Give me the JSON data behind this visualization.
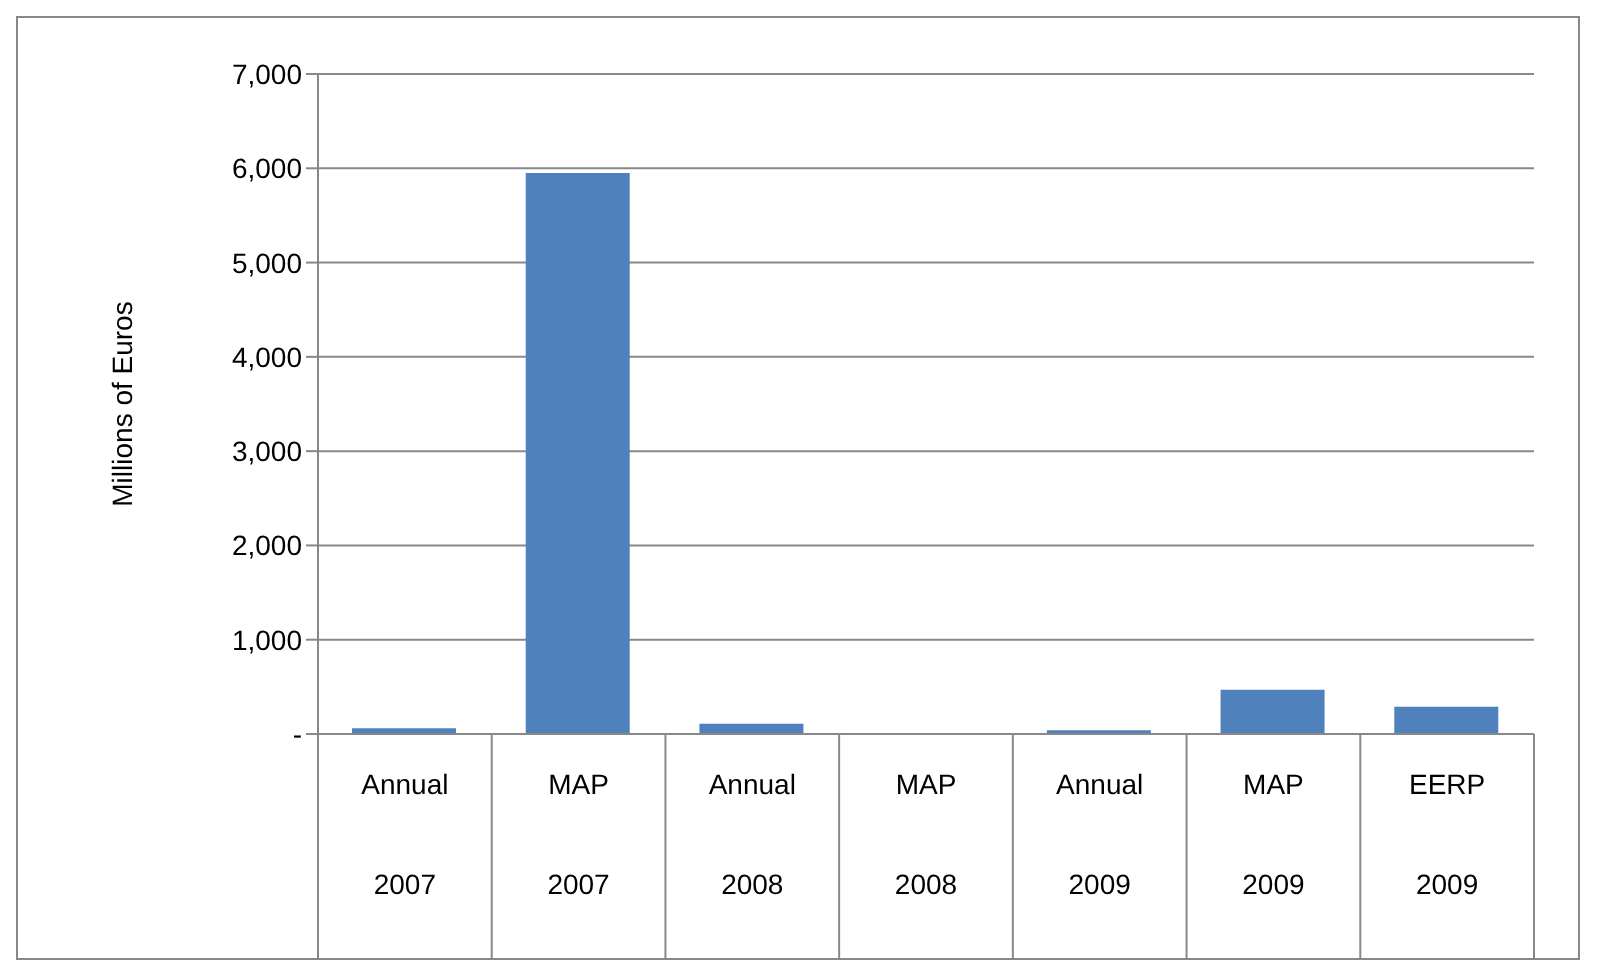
{
  "chart_data": {
    "type": "bar",
    "ylabel": "Millions of Euros",
    "categories": [
      "Annual\n2007",
      "MAP\n2007",
      "Annual\n2008",
      "MAP\n2008",
      "Annual\n2009",
      "MAP\n2009",
      "EERP\n2009"
    ],
    "values": [
      60,
      5950,
      110,
      0,
      40,
      470,
      290
    ],
    "color": "#4f81bd",
    "ylim": [
      0,
      7000
    ],
    "yticks": [
      {
        "value": 0,
        "label": "-"
      },
      {
        "value": 1000,
        "label": "1,000"
      },
      {
        "value": 2000,
        "label": "2,000"
      },
      {
        "value": 3000,
        "label": "3,000"
      },
      {
        "value": 4000,
        "label": "4,000"
      },
      {
        "value": 5000,
        "label": "5,000"
      },
      {
        "value": 6000,
        "label": "6,000"
      },
      {
        "value": 7000,
        "label": "7,000"
      }
    ],
    "grid": "y"
  }
}
